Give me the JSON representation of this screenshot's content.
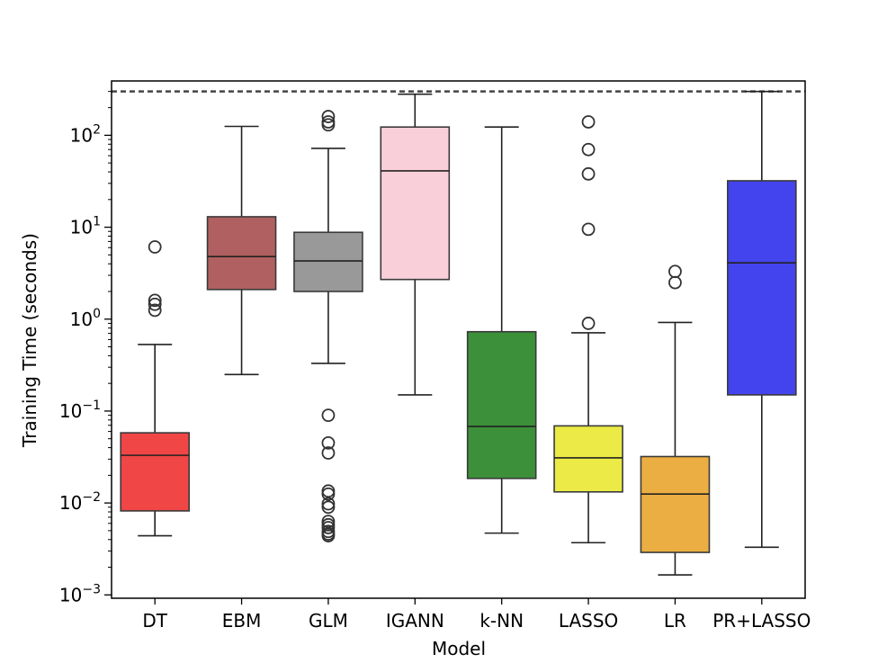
{
  "chart_data": {
    "type": "box",
    "xlabel": "Model",
    "ylabel": "Training Time (seconds)",
    "yscale": "log",
    "ylim": [
      0.00092,
      390
    ],
    "y_ticks": [
      {
        "value": 0.001,
        "base": "10",
        "exp": "−3"
      },
      {
        "value": 0.01,
        "base": "10",
        "exp": "−2"
      },
      {
        "value": 0.1,
        "base": "10",
        "exp": "−1"
      },
      {
        "value": 1,
        "base": "10",
        "exp": "0"
      },
      {
        "value": 10,
        "base": "10",
        "exp": "1"
      },
      {
        "value": 100,
        "base": "10",
        "exp": "2"
      }
    ],
    "reference_line": {
      "value": 300,
      "style": "dashed",
      "color": "#444444"
    },
    "categories": [
      "DT",
      "EBM",
      "GLM",
      "IGANN",
      "k-NN",
      "LASSO",
      "LR",
      "PR+LASSO"
    ],
    "boxes": [
      {
        "name": "DT",
        "color": "#f04646",
        "whisker_low": 0.0044,
        "q1": 0.0082,
        "median": 0.033,
        "q3": 0.058,
        "whisker_high": 0.53,
        "outliers": [
          6.1,
          1.6,
          1.45,
          1.25
        ]
      },
      {
        "name": "EBM",
        "color": "#b06060",
        "whisker_low": 0.25,
        "q1": 2.1,
        "median": 4.8,
        "q3": 13.0,
        "whisker_high": 125,
        "outliers": []
      },
      {
        "name": "GLM",
        "color": "#999999",
        "whisker_low": 0.33,
        "q1": 2.0,
        "median": 4.3,
        "q3": 8.8,
        "whisker_high": 72,
        "outliers": [
          160,
          140,
          130,
          0.09,
          0.045,
          0.035,
          0.0135,
          0.0125,
          0.0098,
          0.009,
          0.0063,
          0.0058,
          0.0054,
          0.0049,
          0.0046,
          0.0044
        ]
      },
      {
        "name": "IGANN",
        "color": "#f9d0da",
        "whisker_low": 0.15,
        "q1": 2.7,
        "median": 41,
        "q3": 123,
        "whisker_high": 280,
        "outliers": []
      },
      {
        "name": "k-NN",
        "color": "#3c9039",
        "whisker_low": 0.0047,
        "q1": 0.0185,
        "median": 0.068,
        "q3": 0.73,
        "whisker_high": 123,
        "outliers": []
      },
      {
        "name": "LASSO",
        "color": "#ebea46",
        "whisker_low": 0.0037,
        "q1": 0.0132,
        "median": 0.031,
        "q3": 0.069,
        "whisker_high": 0.71,
        "outliers": [
          140,
          70,
          38,
          9.5,
          0.9
        ]
      },
      {
        "name": "LR",
        "color": "#ebae42",
        "whisker_low": 0.00165,
        "q1": 0.0029,
        "median": 0.0125,
        "q3": 0.032,
        "whisker_high": 0.92,
        "outliers": [
          3.3,
          2.5
        ]
      },
      {
        "name": "PR+LASSO",
        "color": "#4444ee",
        "whisker_low": 0.0033,
        "q1": 0.15,
        "median": 4.1,
        "q3": 32,
        "whisker_high": 300,
        "outliers": []
      }
    ]
  }
}
